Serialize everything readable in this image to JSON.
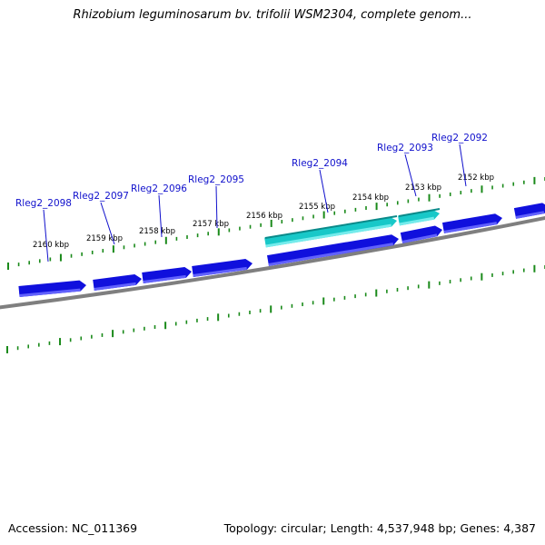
{
  "title": "Rhizobium leguminosarum bv. trifolii WSM2304, complete genom...",
  "footer": {
    "accession": "Accession: NC_011369",
    "summary": "Topology: circular; Length: 4,537,948 bp; Genes: 4,387"
  },
  "colors": {
    "gene": "#1010dd",
    "gene_shadow": "#6a6aff",
    "highlighted_gene": "#18c8c8",
    "highlighted_gene_dark": "#0a8a8a",
    "tick": "#1a8a1a",
    "backbone": "#808080",
    "label": "#1010cc"
  },
  "ruler_labels": [
    "2160 kbp",
    "2159 kbp",
    "2158 kbp",
    "2157 kbp",
    "2156 kbp",
    "2155 kbp",
    "2154 kbp",
    "2153 kbp",
    "2152 kbp"
  ],
  "gene_labels": [
    "Rleg2_2098",
    "Rleg2_2097",
    "Rleg2_2096",
    "Rleg2_2095",
    "Rleg2_2094",
    "Rleg2_2093",
    "Rleg2_2092"
  ]
}
